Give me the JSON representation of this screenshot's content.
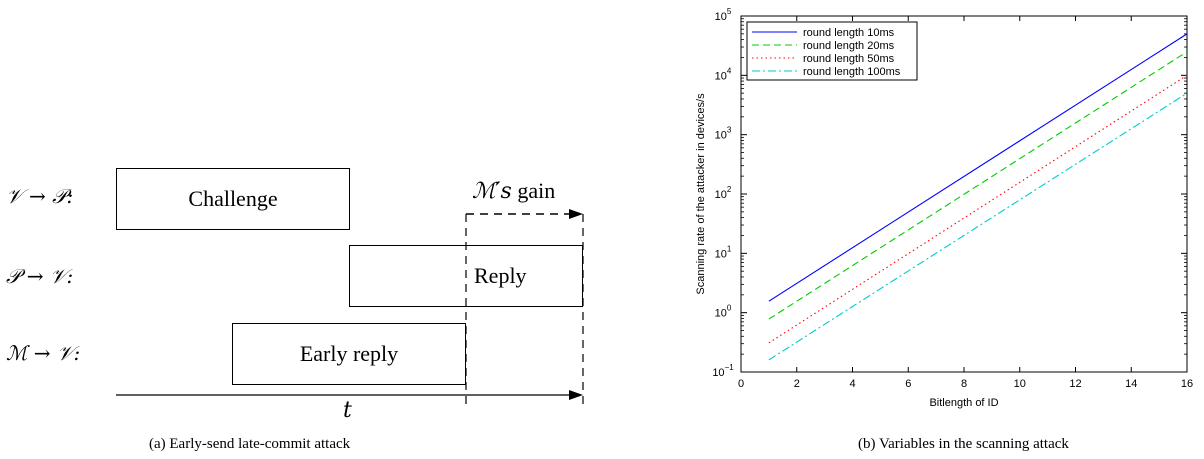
{
  "panel_a": {
    "caption": "(a) Early-send late-commit attack",
    "rows": [
      {
        "label": "𝒱 → 𝒫:",
        "box_text": "Challenge"
      },
      {
        "label": "𝒫 → 𝒱:",
        "box_text": "Reply"
      },
      {
        "label": "ℳ → 𝒱:",
        "box_text": "Early reply"
      }
    ],
    "gain_symbol": "ℳ′s",
    "gain_word": "gain",
    "time_label": "t"
  },
  "panel_b": {
    "caption": "(b) Variables in the scanning attack"
  },
  "chart_data": {
    "type": "line",
    "title": "",
    "xlabel": "Bitlength of ID",
    "ylabel": "Scanning rate of the attacker in devices/s",
    "xlim": [
      0,
      16
    ],
    "ylim": [
      0.1,
      100000
    ],
    "yscale": "log",
    "xticks": [
      "0",
      "2",
      "4",
      "6",
      "8",
      "10",
      "12",
      "14",
      "16"
    ],
    "yticks": [
      {
        "base": "10",
        "exp": "−1"
      },
      {
        "base": "10",
        "exp": "0"
      },
      {
        "base": "10",
        "exp": "1"
      },
      {
        "base": "10",
        "exp": "2"
      },
      {
        "base": "10",
        "exp": "3"
      },
      {
        "base": "10",
        "exp": "4"
      },
      {
        "base": "10",
        "exp": "5"
      }
    ],
    "grid": false,
    "legend_position": "top-left",
    "series": [
      {
        "name": "round length 10ms",
        "color": "#0000ff",
        "dash": "solid",
        "x": [
          1,
          16
        ],
        "y": [
          1.56,
          50000
        ]
      },
      {
        "name": "round length 20ms",
        "color": "#00cc00",
        "dash": "dashed",
        "x": [
          1,
          16
        ],
        "y": [
          0.78,
          25000
        ]
      },
      {
        "name": "round length 50ms",
        "color": "#ff0000",
        "dash": "dotted",
        "x": [
          1,
          16
        ],
        "y": [
          0.31,
          10000
        ]
      },
      {
        "name": "round length 100ms",
        "color": "#00cccc",
        "dash": "dashdot",
        "x": [
          1,
          16
        ],
        "y": [
          0.16,
          5000
        ]
      }
    ]
  }
}
